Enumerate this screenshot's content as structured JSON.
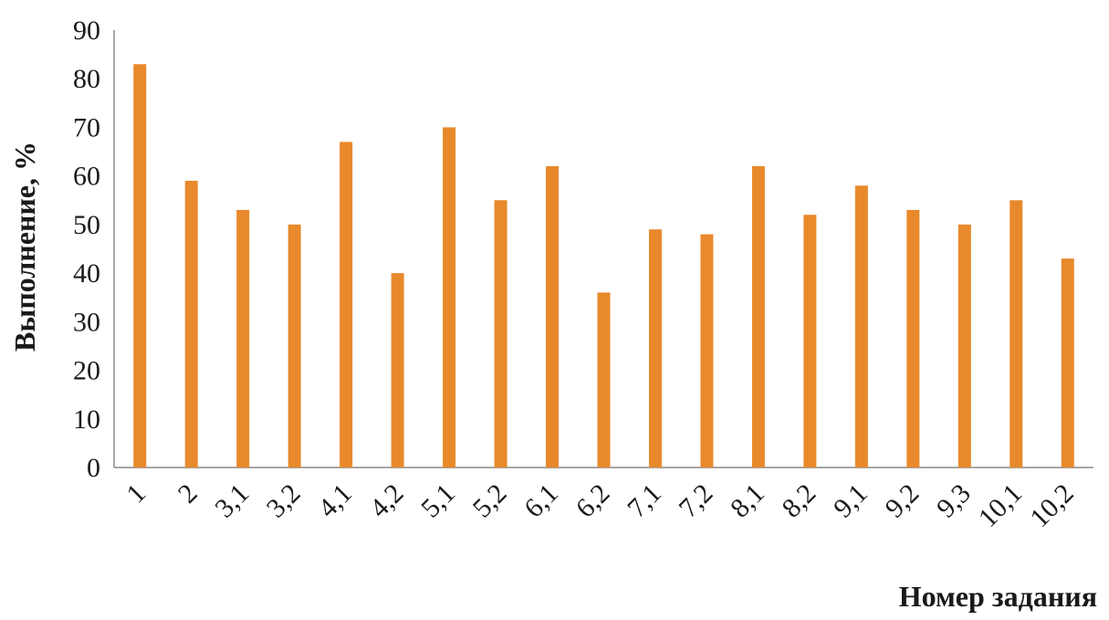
{
  "chart_data": {
    "type": "bar",
    "categories": [
      "1",
      "2",
      "3,1",
      "3,2",
      "4,1",
      "4,2",
      "5,1",
      "5,2",
      "6,1",
      "6,2",
      "7,1",
      "7,2",
      "8,1",
      "8,2",
      "9,1",
      "9,2",
      "9,3",
      "10,1",
      "10,2"
    ],
    "values": [
      83,
      59,
      53,
      50,
      67,
      40,
      70,
      55,
      62,
      36,
      49,
      48,
      62,
      52,
      58,
      53,
      50,
      55,
      43
    ],
    "title": "",
    "xlabel": "Номер задания",
    "ylabel": "Выполнение, %",
    "ylim": [
      0,
      90
    ],
    "yticks": [
      "0",
      "10",
      "20",
      "30",
      "40",
      "50",
      "60",
      "70",
      "80",
      "90"
    ],
    "grid": false,
    "bar_color": "#E8892B"
  }
}
